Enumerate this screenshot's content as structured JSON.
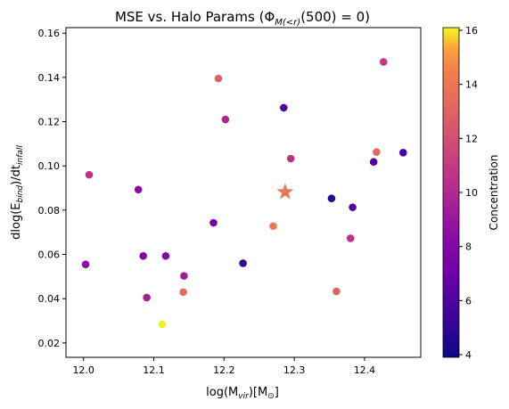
{
  "chart_data": {
    "type": "scatter",
    "title": "MSE vs. Halo Params (Φ",
    "title_sub": "M(<r)",
    "title_tail": "(500) = 0)",
    "xlabel": "log(M",
    "xlabel_sub": "vir",
    "xlabel_mid": ")[M",
    "xlabel_sub2": "⊙",
    "xlabel_tail": "]",
    "ylabel": "dlog(E",
    "ylabel_sub": "bind",
    "ylabel_mid": ")/dt",
    "ylabel_sub2": "infall",
    "xlim": [
      11.975,
      12.48
    ],
    "ylim": [
      0.0135,
      0.1625
    ],
    "xticks": [
      12.0,
      12.1,
      12.2,
      12.3,
      12.4
    ],
    "yticks": [
      0.02,
      0.04,
      0.06,
      0.08,
      0.1,
      0.12,
      0.14,
      0.16
    ],
    "colorbar": {
      "label": "Concentration",
      "min": 3.9,
      "max": 16.1,
      "ticks": [
        4,
        6,
        8,
        10,
        12,
        14,
        16
      ],
      "colormap": "plasma"
    },
    "points": [
      {
        "x": 12.003,
        "y": 0.0555,
        "c": 8.5
      },
      {
        "x": 12.008,
        "y": 0.096,
        "c": 10.5
      },
      {
        "x": 12.078,
        "y": 0.0893,
        "c": 8.3
      },
      {
        "x": 12.085,
        "y": 0.0593,
        "c": 7.8
      },
      {
        "x": 12.09,
        "y": 0.0405,
        "c": 9.5
      },
      {
        "x": 12.112,
        "y": 0.0285,
        "c": 16.0
      },
      {
        "x": 12.117,
        "y": 0.0593,
        "c": 8.0
      },
      {
        "x": 12.142,
        "y": 0.043,
        "c": 13.5
      },
      {
        "x": 12.143,
        "y": 0.0503,
        "c": 9.3
      },
      {
        "x": 12.185,
        "y": 0.0743,
        "c": 7.2
      },
      {
        "x": 12.192,
        "y": 0.1395,
        "c": 13.0
      },
      {
        "x": 12.202,
        "y": 0.121,
        "c": 9.8
      },
      {
        "x": 12.227,
        "y": 0.056,
        "c": 5.0
      },
      {
        "x": 12.27,
        "y": 0.0728,
        "c": 14.0
      },
      {
        "x": 12.285,
        "y": 0.1263,
        "c": 6.0
      },
      {
        "x": 12.295,
        "y": 0.1033,
        "c": 10.5
      },
      {
        "x": 12.353,
        "y": 0.0853,
        "c": 4.8
      },
      {
        "x": 12.36,
        "y": 0.0433,
        "c": 13.0
      },
      {
        "x": 12.38,
        "y": 0.0673,
        "c": 10.5
      },
      {
        "x": 12.383,
        "y": 0.0813,
        "c": 6.2
      },
      {
        "x": 12.413,
        "y": 0.1018,
        "c": 6.0
      },
      {
        "x": 12.417,
        "y": 0.1063,
        "c": 13.3
      },
      {
        "x": 12.427,
        "y": 0.147,
        "c": 10.8
      },
      {
        "x": 12.455,
        "y": 0.106,
        "c": 5.8
      }
    ],
    "star": {
      "x": 12.287,
      "y": 0.0882,
      "color": "#e8785a"
    }
  }
}
